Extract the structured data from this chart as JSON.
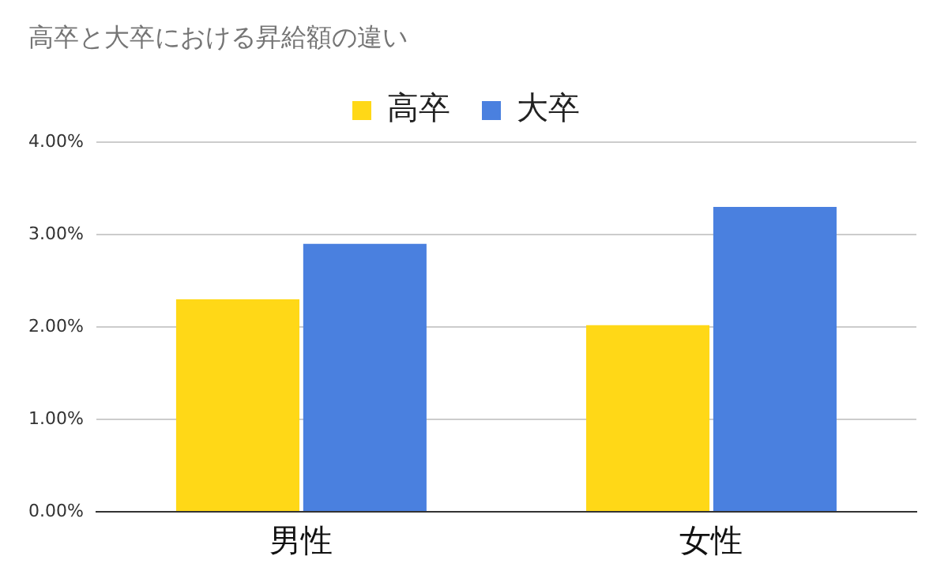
{
  "chart_data": {
    "type": "bar",
    "title": "高卒と大卒における昇給額の違い",
    "categories": [
      "男性",
      "女性"
    ],
    "series": [
      {
        "name": "高卒",
        "color": "#ffd817",
        "values": [
          2.3,
          2.02
        ]
      },
      {
        "name": "大卒",
        "color": "#4a80df",
        "values": [
          2.9,
          3.3
        ]
      }
    ],
    "ylim": [
      0,
      4
    ],
    "yticks": [
      {
        "value": 0,
        "label": "0.00%"
      },
      {
        "value": 1,
        "label": "1.00%"
      },
      {
        "value": 2,
        "label": "2.00%"
      },
      {
        "value": 3,
        "label": "3.00%"
      },
      {
        "value": 4,
        "label": "4.00%"
      }
    ],
    "grid": "y",
    "legend": "top"
  }
}
